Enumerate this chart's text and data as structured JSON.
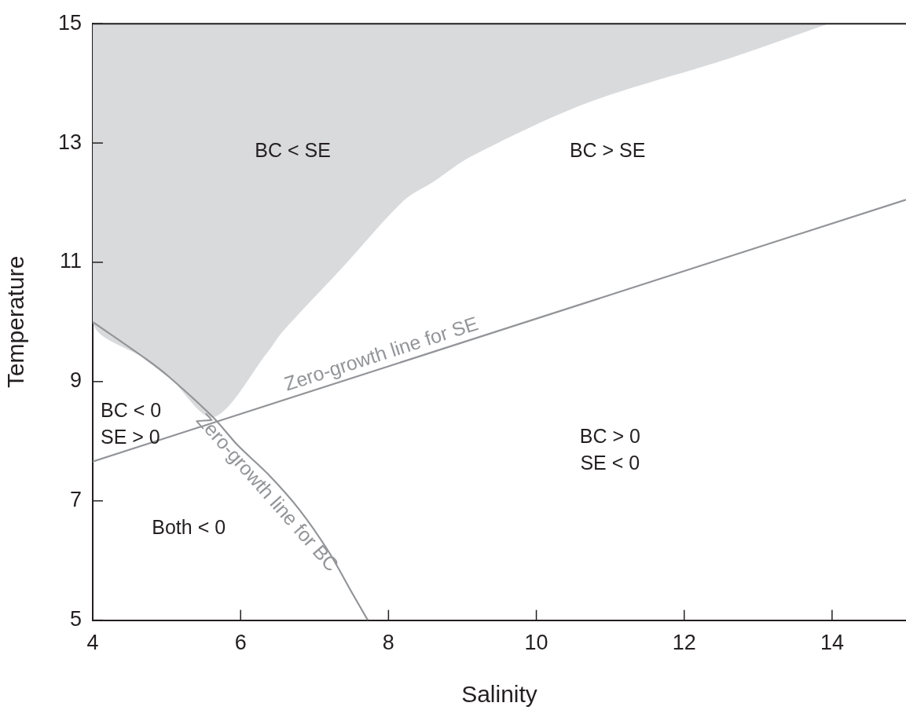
{
  "chart_data": {
    "type": "line",
    "xlabel": "Salinity",
    "ylabel": "Temperature",
    "xlim": [
      4,
      15
    ],
    "xticks": [
      4,
      6,
      8,
      10,
      12,
      14
    ],
    "ylim": [
      5,
      15
    ],
    "yticks": [
      5,
      7,
      9,
      11,
      13,
      15
    ],
    "series": [
      {
        "type": "area",
        "color": "#d9dadc",
        "x": [
          4,
          4,
          4.73,
          5.04,
          5.63,
          6.37,
          6.57,
          7.39,
          8.21,
          8.62,
          9.11,
          10.66,
          12.64,
          13.95
        ],
        "values": [
          15,
          10.0,
          9.37,
          9.07,
          8.4,
          9.5,
          9.84,
          10.93,
          12.04,
          12.36,
          12.77,
          13.66,
          14.43,
          15
        ]
      },
      {
        "type": "line",
        "name": "Zero-growth line for SE",
        "color": "#939598",
        "x": [
          4,
          15
        ],
        "values": [
          7.66,
          12.05
        ]
      },
      {
        "type": "line",
        "name": "Zero-growth line for BC",
        "color": "#939598",
        "x": [
          4,
          4.73,
          5.04,
          5.63,
          5.97,
          6.37,
          6.79,
          7.19,
          7.52,
          7.72
        ],
        "values": [
          10.0,
          9.37,
          9.07,
          8.4,
          7.92,
          7.45,
          6.86,
          6.15,
          5.43,
          5.0
        ]
      }
    ],
    "annotations": [
      "BC < SE",
      "BC > SE",
      "BC < 0\nSE > 0",
      "BC > 0\nSE < 0",
      "Both < 0"
    ]
  }
}
